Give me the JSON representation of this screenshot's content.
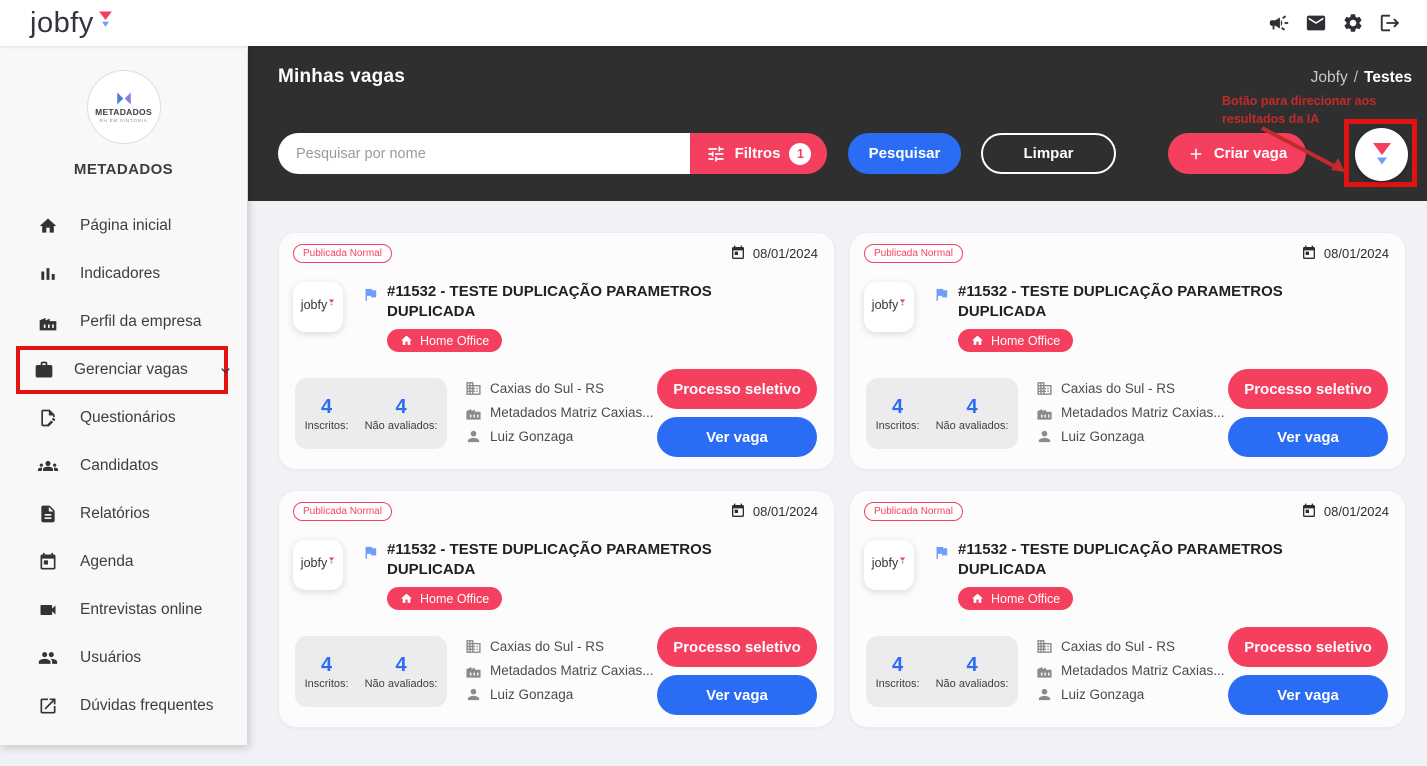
{
  "colors": {
    "accent_pink": "#f43f5e",
    "accent_blue": "#2a6cf4",
    "flag_blue": "#6f9ef5",
    "annotation_red": "#c32a2a",
    "highlight_red": "#e01212",
    "header_dark": "#302f2f",
    "content_bg": "#f1f2f6",
    "sidebar_bg": "#f8f8f8"
  },
  "topbar": {
    "logo_text": "jobfy",
    "icons": [
      {
        "name": "megaphone-icon"
      },
      {
        "name": "mail-icon"
      },
      {
        "name": "settings-icon"
      },
      {
        "name": "logout-icon"
      }
    ]
  },
  "sidebar": {
    "company_logo": {
      "name": "METADADOS",
      "tagline": "RH EM SINTONIA"
    },
    "company_name": "METADADOS",
    "items": [
      {
        "key": "pagina-inicial",
        "icon": "home-icon",
        "label": "Página inicial"
      },
      {
        "key": "indicadores",
        "icon": "bar-chart-icon",
        "label": "Indicadores"
      },
      {
        "key": "perfil-da-empresa",
        "icon": "factory-icon",
        "label": "Perfil da empresa"
      },
      {
        "key": "gerenciar-vagas",
        "icon": "briefcase-icon",
        "label": "Gerenciar vagas",
        "chevron": true,
        "highlighted": true
      },
      {
        "key": "questionarios",
        "icon": "form-icon",
        "label": "Questionários"
      },
      {
        "key": "candidatos",
        "icon": "people-group-icon",
        "label": "Candidatos"
      },
      {
        "key": "relatorios",
        "icon": "document-icon",
        "label": "Relatórios"
      },
      {
        "key": "agenda",
        "icon": "calendar-icon",
        "label": "Agenda"
      },
      {
        "key": "entrevistas-online",
        "icon": "video-icon",
        "label": "Entrevistas online"
      },
      {
        "key": "usuarios",
        "icon": "users-icon",
        "label": "Usuários"
      },
      {
        "key": "duvidas-frequentes",
        "icon": "external-link-icon",
        "label": "Dúvidas frequentes"
      }
    ]
  },
  "header": {
    "title": "Minhas vagas",
    "breadcrumb": {
      "parent": "Jobfy",
      "separator": "/",
      "current": "Testes"
    },
    "search_placeholder": "Pesquisar por nome",
    "filters_label": "Filtros",
    "filters_count": "1",
    "search_button": "Pesquisar",
    "clear_button": "Limpar",
    "create_button": "Criar vaga",
    "annotation": {
      "line1": "Botão para direcionar aos",
      "line2": "resultados da IA"
    }
  },
  "cards": [
    {
      "status": "Publicada Normal",
      "date": "08/01/2024",
      "logo_text": "jobfy",
      "title": "#11532 - TESTE DUPLICAÇÃO PARAMETROS DUPLICADA",
      "modality": "Home Office",
      "stats": [
        {
          "value": "4",
          "label": "Inscritos:"
        },
        {
          "value": "4",
          "label": "Não avaliados:"
        }
      ],
      "info": [
        {
          "icon": "building-icon",
          "text": "Caxias do Sul - RS"
        },
        {
          "icon": "factory-icon",
          "text": "Metadados Matriz Caxias..."
        },
        {
          "icon": "person-icon",
          "text": "Luiz Gonzaga"
        }
      ],
      "actions": [
        {
          "label": "Processo seletivo",
          "style": "pink"
        },
        {
          "label": "Ver vaga",
          "style": "blue"
        }
      ]
    },
    {
      "status": "Publicada Normal",
      "date": "08/01/2024",
      "logo_text": "jobfy",
      "title": "#11532 - TESTE DUPLICAÇÃO PARAMETROS DUPLICADA",
      "modality": "Home Office",
      "stats": [
        {
          "value": "4",
          "label": "Inscritos:"
        },
        {
          "value": "4",
          "label": "Não avaliados:"
        }
      ],
      "info": [
        {
          "icon": "building-icon",
          "text": "Caxias do Sul - RS"
        },
        {
          "icon": "factory-icon",
          "text": "Metadados Matriz Caxias..."
        },
        {
          "icon": "person-icon",
          "text": "Luiz Gonzaga"
        }
      ],
      "actions": [
        {
          "label": "Processo seletivo",
          "style": "pink"
        },
        {
          "label": "Ver vaga",
          "style": "blue"
        }
      ]
    },
    {
      "status": "Publicada Normal",
      "date": "08/01/2024",
      "logo_text": "jobfy",
      "title": "#11532 - TESTE DUPLICAÇÃO PARAMETROS DUPLICADA",
      "modality": "Home Office",
      "stats": [
        {
          "value": "4",
          "label": "Inscritos:"
        },
        {
          "value": "4",
          "label": "Não avaliados:"
        }
      ],
      "info": [
        {
          "icon": "building-icon",
          "text": "Caxias do Sul - RS"
        },
        {
          "icon": "factory-icon",
          "text": "Metadados Matriz Caxias..."
        },
        {
          "icon": "person-icon",
          "text": "Luiz Gonzaga"
        }
      ],
      "actions": [
        {
          "label": "Processo seletivo",
          "style": "pink"
        },
        {
          "label": "Ver vaga",
          "style": "blue"
        }
      ]
    },
    {
      "status": "Publicada Normal",
      "date": "08/01/2024",
      "logo_text": "jobfy",
      "title": "#11532 - TESTE DUPLICAÇÃO PARAMETROS DUPLICADA",
      "modality": "Home Office",
      "stats": [
        {
          "value": "4",
          "label": "Inscritos:"
        },
        {
          "value": "4",
          "label": "Não avaliados:"
        }
      ],
      "info": [
        {
          "icon": "building-icon",
          "text": "Caxias do Sul - RS"
        },
        {
          "icon": "factory-icon",
          "text": "Metadados Matriz Caxias..."
        },
        {
          "icon": "person-icon",
          "text": "Luiz Gonzaga"
        }
      ],
      "actions": [
        {
          "label": "Processo seletivo",
          "style": "pink"
        },
        {
          "label": "Ver vaga",
          "style": "blue"
        }
      ]
    }
  ]
}
